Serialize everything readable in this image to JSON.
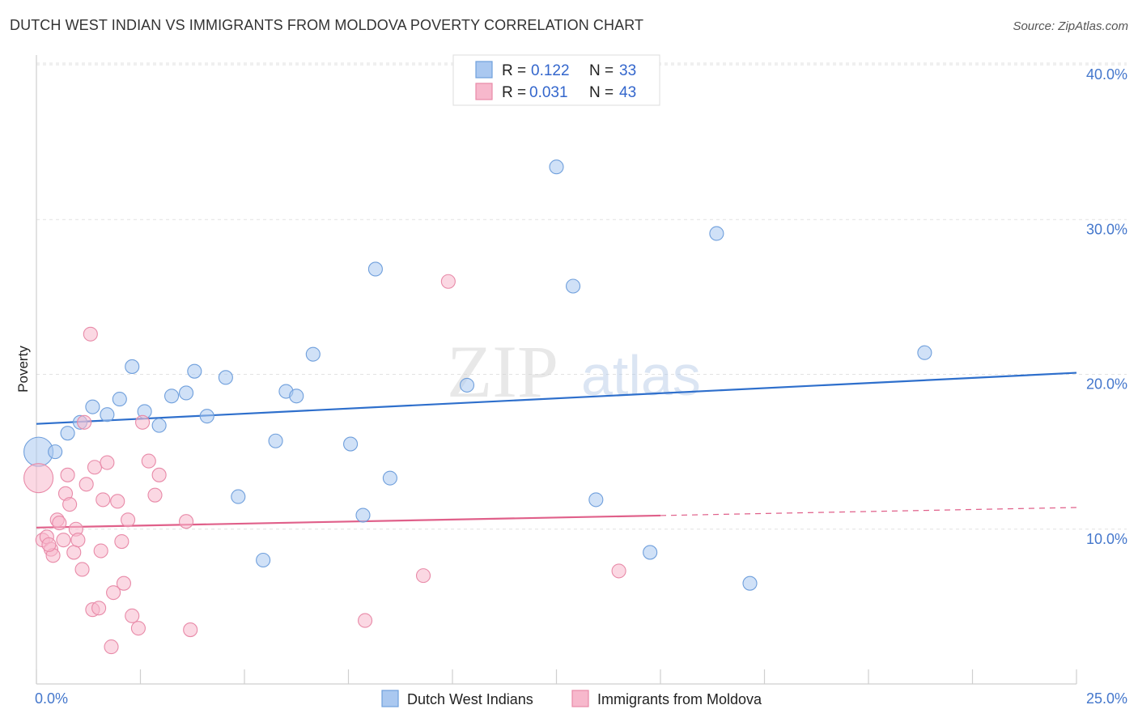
{
  "title": "DUTCH WEST INDIAN VS IMMIGRANTS FROM MOLDOVA POVERTY CORRELATION CHART",
  "source": "Source: ZipAtlas.com",
  "watermark": {
    "zip": "ZIP",
    "atlas": "atlas"
  },
  "legend": {
    "r_label": "R =",
    "n_label": "N =",
    "rows": [
      {
        "r": "0.122",
        "n": "33",
        "color": "#aac8f0"
      },
      {
        "r": "0.031",
        "n": "43",
        "color": "#f7b8cc"
      }
    ]
  },
  "bottom_legend": [
    {
      "label": "Dutch West Indians",
      "color": "#aac8f0"
    },
    {
      "label": "Immigrants from Moldova",
      "color": "#f7b8cc"
    }
  ],
  "chart_data": {
    "type": "scatter",
    "title": "DUTCH WEST INDIAN VS IMMIGRANTS FROM MOLDOVA POVERTY CORRELATION CHART",
    "xlabel": "",
    "ylabel": "Poverty",
    "xlim": [
      0,
      25
    ],
    "ylim": [
      0,
      40
    ],
    "x_tick_labels": [
      "0.0%",
      "25.0%"
    ],
    "y_ticks": [
      10,
      20,
      30,
      40
    ],
    "y_tick_labels": [
      "10.0%",
      "20.0%",
      "30.0%",
      "40.0%"
    ],
    "grid": true,
    "legend_position": "top-center",
    "series": [
      {
        "name": "Dutch West Indians",
        "color": "#aac8f0",
        "stroke": "#6f9fdc",
        "line_color": "#2e6fcc",
        "trend": {
          "x": [
            0,
            25
          ],
          "y": [
            16.8,
            20.1
          ],
          "dashed_from": null
        },
        "points": [
          {
            "x": 0.05,
            "y": 15.0,
            "big": true
          },
          {
            "x": 0.45,
            "y": 15.0
          },
          {
            "x": 0.75,
            "y": 16.2
          },
          {
            "x": 1.05,
            "y": 16.9
          },
          {
            "x": 1.35,
            "y": 17.9
          },
          {
            "x": 1.7,
            "y": 17.4
          },
          {
            "x": 2.0,
            "y": 18.4
          },
          {
            "x": 2.3,
            "y": 20.5
          },
          {
            "x": 2.6,
            "y": 17.6
          },
          {
            "x": 2.95,
            "y": 16.7
          },
          {
            "x": 3.25,
            "y": 18.6
          },
          {
            "x": 3.6,
            "y": 18.8
          },
          {
            "x": 3.8,
            "y": 20.2
          },
          {
            "x": 4.1,
            "y": 17.3
          },
          {
            "x": 4.55,
            "y": 19.8
          },
          {
            "x": 4.85,
            "y": 12.1
          },
          {
            "x": 5.45,
            "y": 8.0
          },
          {
            "x": 5.75,
            "y": 15.7
          },
          {
            "x": 6.0,
            "y": 18.9
          },
          {
            "x": 6.25,
            "y": 18.6
          },
          {
            "x": 6.65,
            "y": 21.3
          },
          {
            "x": 7.55,
            "y": 15.5
          },
          {
            "x": 7.85,
            "y": 10.9
          },
          {
            "x": 8.15,
            "y": 26.8
          },
          {
            "x": 8.5,
            "y": 13.3
          },
          {
            "x": 10.35,
            "y": 19.3
          },
          {
            "x": 12.5,
            "y": 33.4
          },
          {
            "x": 12.9,
            "y": 25.7
          },
          {
            "x": 13.45,
            "y": 11.9
          },
          {
            "x": 14.75,
            "y": 8.5
          },
          {
            "x": 16.35,
            "y": 29.1
          },
          {
            "x": 17.15,
            "y": 6.5
          },
          {
            "x": 21.35,
            "y": 21.4
          }
        ]
      },
      {
        "name": "Immigrants from Moldova",
        "color": "#f7b8cc",
        "stroke": "#e88aa8",
        "line_color": "#e0608a",
        "trend": {
          "x": [
            0,
            25
          ],
          "y": [
            10.1,
            11.4
          ],
          "dashed_from": 15
        },
        "points": [
          {
            "x": 0.05,
            "y": 13.3,
            "big": true
          },
          {
            "x": 0.15,
            "y": 9.3
          },
          {
            "x": 0.25,
            "y": 9.5
          },
          {
            "x": 0.35,
            "y": 8.7
          },
          {
            "x": 0.4,
            "y": 8.3
          },
          {
            "x": 0.5,
            "y": 10.6
          },
          {
            "x": 0.55,
            "y": 10.4
          },
          {
            "x": 0.65,
            "y": 9.3
          },
          {
            "x": 0.7,
            "y": 12.3
          },
          {
            "x": 0.75,
            "y": 13.5
          },
          {
            "x": 0.8,
            "y": 11.6
          },
          {
            "x": 0.9,
            "y": 8.5
          },
          {
            "x": 0.95,
            "y": 10.0
          },
          {
            "x": 1.0,
            "y": 9.3
          },
          {
            "x": 1.1,
            "y": 7.4
          },
          {
            "x": 1.15,
            "y": 16.9
          },
          {
            "x": 1.2,
            "y": 12.9
          },
          {
            "x": 1.3,
            "y": 22.6
          },
          {
            "x": 1.35,
            "y": 4.8
          },
          {
            "x": 1.4,
            "y": 14.0
          },
          {
            "x": 1.5,
            "y": 4.9
          },
          {
            "x": 1.55,
            "y": 8.6
          },
          {
            "x": 1.6,
            "y": 11.9
          },
          {
            "x": 1.7,
            "y": 14.3
          },
          {
            "x": 1.8,
            "y": 2.4
          },
          {
            "x": 1.85,
            "y": 5.9
          },
          {
            "x": 1.95,
            "y": 11.8
          },
          {
            "x": 2.05,
            "y": 9.2
          },
          {
            "x": 2.1,
            "y": 6.5
          },
          {
            "x": 2.2,
            "y": 10.6
          },
          {
            "x": 2.3,
            "y": 4.4
          },
          {
            "x": 2.45,
            "y": 3.6
          },
          {
            "x": 2.55,
            "y": 16.9
          },
          {
            "x": 2.7,
            "y": 14.4
          },
          {
            "x": 2.85,
            "y": 12.2
          },
          {
            "x": 2.95,
            "y": 13.5
          },
          {
            "x": 3.6,
            "y": 10.5
          },
          {
            "x": 3.7,
            "y": 3.5
          },
          {
            "x": 7.9,
            "y": 4.1
          },
          {
            "x": 9.3,
            "y": 7.0
          },
          {
            "x": 9.9,
            "y": 26.0
          },
          {
            "x": 14.0,
            "y": 7.3
          },
          {
            "x": 0.3,
            "y": 9.0
          }
        ]
      }
    ]
  }
}
